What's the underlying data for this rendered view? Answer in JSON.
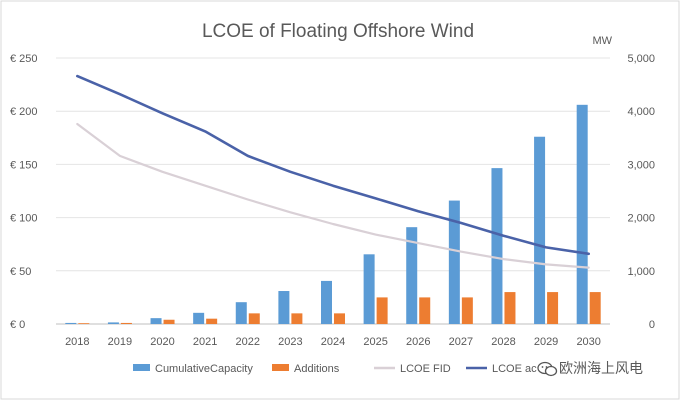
{
  "chart_data": {
    "type": "bar",
    "title": "LCOE of Floating Offshore Wind",
    "categories": [
      "2018",
      "2019",
      "2020",
      "2021",
      "2022",
      "2023",
      "2024",
      "2025",
      "2026",
      "2027",
      "2028",
      "2029",
      "2030"
    ],
    "y_left": {
      "ticks": [
        "€ 0",
        "€ 50",
        "€ 100",
        "€ 150",
        "€ 200",
        "€ 250"
      ],
      "ylim": [
        0,
        250
      ]
    },
    "y_right": {
      "unit": "MW",
      "ticks": [
        "0",
        "1,000",
        "2,000",
        "3,000",
        "4,000",
        "5,000"
      ],
      "ylim": [
        0,
        5000
      ]
    },
    "series": [
      {
        "name": "CumulativeCapacity",
        "type": "bar",
        "axis": "right",
        "color": "#5b9bd5",
        "values": [
          20,
          30,
          110,
          210,
          410,
          620,
          810,
          1310,
          1820,
          2320,
          2930,
          3520,
          4120
        ]
      },
      {
        "name": "Additions",
        "type": "bar",
        "axis": "right",
        "color": "#ed7d31",
        "values": [
          15,
          20,
          80,
          100,
          200,
          200,
          200,
          500,
          500,
          500,
          600,
          600,
          600
        ]
      },
      {
        "name": "LCOE FID",
        "type": "line",
        "axis": "left",
        "color": "#d9d0d6",
        "values": [
          188,
          158,
          143,
          130,
          117,
          105,
          94,
          84,
          76,
          68,
          61,
          56,
          53
        ]
      },
      {
        "name": "LCOE ac",
        "type": "line",
        "axis": "left",
        "color": "#4a62a8",
        "values": [
          233,
          216,
          198,
          181,
          158,
          143,
          130,
          118,
          106,
          95,
          83,
          72,
          66
        ]
      }
    ],
    "legend": {
      "position": "bottom",
      "items": [
        "CumulativeCapacity",
        "Additions",
        "LCOE FID",
        "LCOE ac"
      ]
    },
    "grid": "horizontal"
  },
  "watermark": {
    "text": "欧洲海上风电",
    "icon": "chat-bubble-icon"
  }
}
